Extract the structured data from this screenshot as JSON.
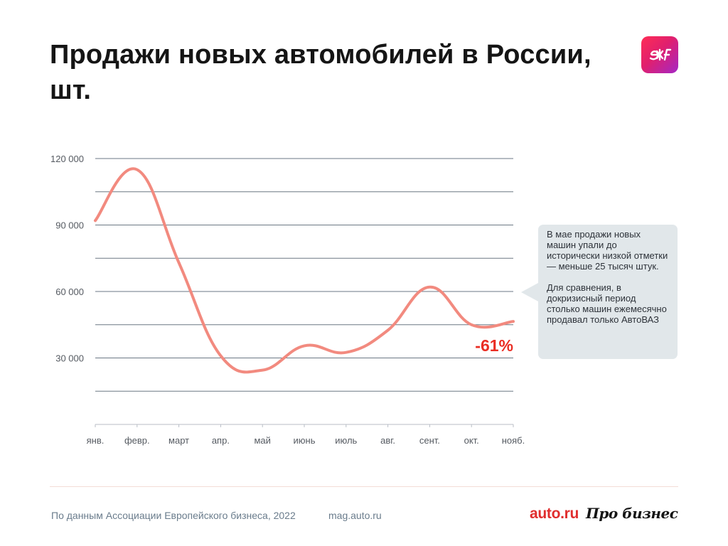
{
  "header": {
    "title": "Продажи новых автомобилей в России, шт."
  },
  "chart_data": {
    "type": "line",
    "title": "Продажи новых автомобилей в России, шт.",
    "xlabel": "",
    "ylabel": "",
    "ylim": [
      0,
      120000
    ],
    "y_ticks": [
      30000,
      60000,
      90000,
      120000
    ],
    "y_tick_labels": [
      "30 000",
      "60 000",
      "90 000",
      "120 000"
    ],
    "grid_step": 15000,
    "grid": true,
    "categories": [
      "янв.",
      "февр.",
      "март",
      "апр.",
      "май",
      "июнь",
      "июль",
      "авг.",
      "сент.",
      "окт.",
      "нояб."
    ],
    "series": [
      {
        "name": "Продажи новых автомобилей",
        "color": "#f28a7f",
        "values": [
          92000,
          115000,
          73000,
          31000,
          24500,
          35500,
          32500,
          42500,
          62000,
          45000,
          46500
        ]
      }
    ],
    "annotations": [
      {
        "text": "-61%",
        "color": "#ea2d23",
        "anchor": "last-point"
      }
    ]
  },
  "callout": {
    "paragraph1": "В мае продажи новых машин упали до исторически низкой отметки — меньше 25 тысяч штук.",
    "paragraph2": "Для сравнения, в докризисный период столько машин ежемесячно продавал только АвтоВАЗ"
  },
  "footer": {
    "source": "По данным Ассоциации Европейского бизнеса, 2022",
    "site": "mag.auto.ru",
    "logo_auto": "auto.ru",
    "logo_business": "Про бизнес"
  },
  "badge": {
    "icon": "zh-logo-icon",
    "gradient": [
      "#ff2d55",
      "#a427c6"
    ]
  }
}
